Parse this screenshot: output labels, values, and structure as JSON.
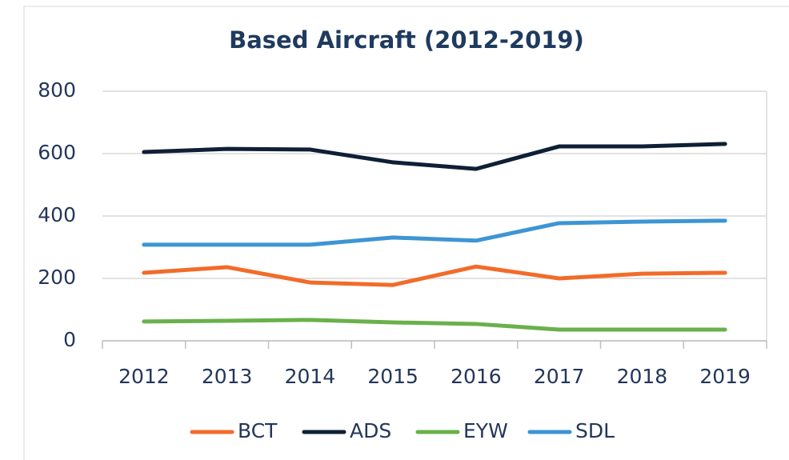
{
  "chart_data": {
    "type": "line",
    "title": "Based Aircraft (2012-2019)",
    "categories": [
      "2012",
      "2013",
      "2014",
      "2015",
      "2016",
      "2017",
      "2018",
      "2019"
    ],
    "series": [
      {
        "name": "BCT",
        "color": "#f26b2a",
        "values": [
          218,
          236,
          187,
          179,
          238,
          200,
          215,
          218
        ]
      },
      {
        "name": "ADS",
        "color": "#0e1f36",
        "values": [
          605,
          615,
          613,
          572,
          551,
          623,
          623,
          631
        ]
      },
      {
        "name": "EYW",
        "color": "#6ab04c",
        "values": [
          62,
          64,
          67,
          59,
          54,
          36,
          36,
          36
        ]
      },
      {
        "name": "SDL",
        "color": "#3d95d4",
        "values": [
          308,
          308,
          308,
          331,
          321,
          377,
          382,
          385
        ]
      }
    ],
    "ylim": [
      0,
      800
    ],
    "yticks": [
      0,
      200,
      400,
      600,
      800
    ],
    "grid": true,
    "legend": "bottom"
  }
}
